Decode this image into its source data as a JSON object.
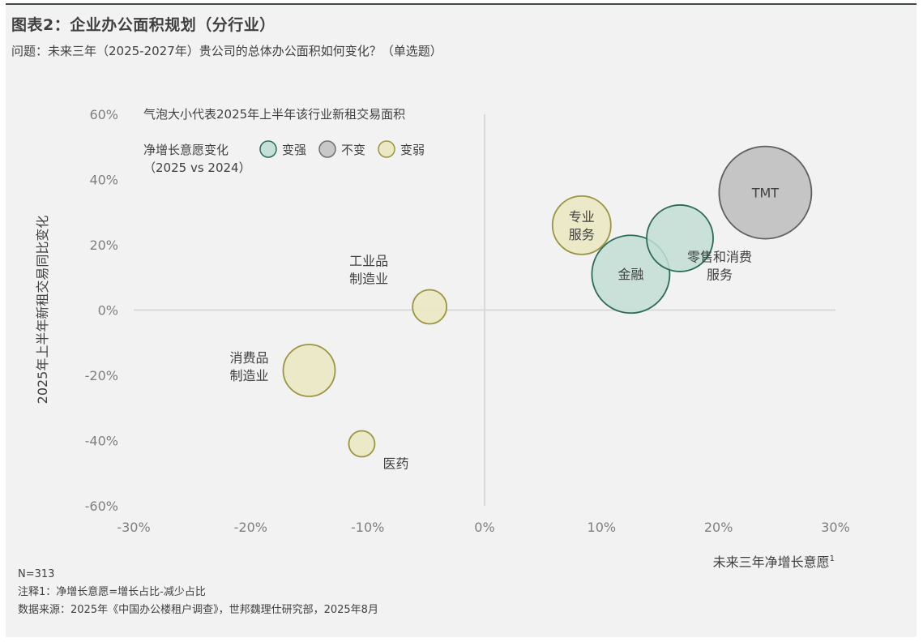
{
  "page": {
    "title": "图表2：企业办公面积规划（分行业）",
    "subtitle": "问题：未来三年（2025-2027年）贵公司的总体办公面积如何变化？（单选题）",
    "notes": {
      "n": "N=313",
      "note1": "注释1：净增长意愿=增长占比-减少占比",
      "source": "数据来源：2025年《中国办公楼租户调查》，世邦魏理仕研究部，2025年8月"
    }
  },
  "chart_data": {
    "type": "scatter",
    "title": "",
    "xlabel": "未来三年净增长意愿",
    "xlabel_superscript": "1",
    "ylabel": "2025年上半年新租交易同比变化",
    "xlim": [
      -30,
      30
    ],
    "ylim": [
      -60,
      60
    ],
    "x_ticks": [
      -30,
      -20,
      -10,
      0,
      10,
      20,
      30
    ],
    "y_ticks": [
      60,
      40,
      20,
      0,
      -20,
      -40,
      -60
    ],
    "x_tick_labels": [
      "-30%",
      "-20%",
      "-10%",
      "0%",
      "10%",
      "20%",
      "30%"
    ],
    "y_tick_labels": [
      "60%",
      "40%",
      "20%",
      "0%",
      "-20%",
      "-40%",
      "-60%"
    ],
    "grid": false,
    "legend": {
      "placement": "top-left",
      "size_note": "气泡大小代表2025年上半年该行业新租交易面积",
      "color_title_line1": "净增长意愿变化",
      "color_title_line2": "（2025 vs 2024）",
      "items": [
        {
          "label": "变强",
          "color": "#c5e0d8",
          "stroke": "#2e6b5a"
        },
        {
          "label": "不变",
          "color": "#c8c8c8",
          "stroke": "#6e6e6e"
        },
        {
          "label": "变弱",
          "color": "#ebe8c4",
          "stroke": "#9a9540"
        }
      ]
    },
    "colors": {
      "stronger": {
        "fill": "#c3ded5",
        "stroke": "#2e6b5a"
      },
      "same": {
        "fill": "#bdbdbd",
        "stroke": "#606060"
      },
      "weaker": {
        "fill": "#ebe8c2",
        "stroke": "#9a9540"
      }
    },
    "points": [
      {
        "label": "TMT",
        "label_lines": [
          "TMT"
        ],
        "x": 24.0,
        "y": 36,
        "size": 57,
        "category": "same",
        "label_pos": "inside"
      },
      {
        "label": "专业服务",
        "label_lines": [
          "专业",
          "服务"
        ],
        "x": 8.3,
        "y": 26,
        "size": 36,
        "category": "weaker",
        "label_pos": "inside"
      },
      {
        "label": "零售和消费服务",
        "label_lines": [
          "零售和消费",
          "服务"
        ],
        "x": 16.7,
        "y": 22,
        "size": 41,
        "category": "stronger",
        "label_pos": "below-right"
      },
      {
        "label": "金融",
        "label_lines": [
          "金融"
        ],
        "x": 12.5,
        "y": 11,
        "size": 48,
        "category": "stronger",
        "label_pos": "inside"
      },
      {
        "label": "工业品制造业",
        "label_lines": [
          "工业品",
          "制造业"
        ],
        "x": -4.7,
        "y": 1,
        "size": 21,
        "category": "weaker",
        "label_pos": "above-left"
      },
      {
        "label": "消费品制造业",
        "label_lines": [
          "消费品",
          "制造业"
        ],
        "x": -15.0,
        "y": -18.5,
        "size": 32,
        "category": "weaker",
        "label_pos": "left"
      },
      {
        "label": "医药",
        "label_lines": [
          "医药"
        ],
        "x": -10.5,
        "y": -41,
        "size": 16,
        "category": "weaker",
        "label_pos": "below-right"
      }
    ]
  }
}
